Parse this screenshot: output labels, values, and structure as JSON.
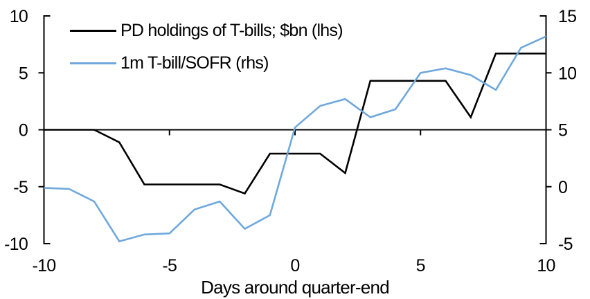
{
  "chart_data": {
    "type": "line",
    "title": "",
    "xlabel": "Days around quarter-end",
    "grid": false,
    "legend_position": "top-left",
    "x": [
      -10,
      -9,
      -8,
      -7,
      -6,
      -5,
      -4,
      -3,
      -2,
      -1,
      0,
      1,
      2,
      3,
      4,
      5,
      6,
      7,
      8,
      9,
      10
    ],
    "series": [
      {
        "name": "PD holdings of T-bills; $bn (lhs)",
        "axis": "left",
        "color": "#000000",
        "values": [
          0,
          0,
          0,
          -1.1,
          -4.8,
          -4.8,
          -4.8,
          -4.8,
          -5.6,
          -2.1,
          -2.1,
          -2.1,
          -3.8,
          4.3,
          4.3,
          4.3,
          4.3,
          1.1,
          6.7,
          6.7,
          6.7
        ]
      },
      {
        "name": "1m T-bill/SOFR (rhs)",
        "axis": "right",
        "color": "#6fa8dc",
        "values": [
          -0.1,
          -0.2,
          -1.3,
          -4.8,
          -4.2,
          -4.1,
          -2.0,
          -1.3,
          -3.7,
          -2.5,
          5.2,
          7.1,
          7.7,
          6.1,
          6.8,
          10.0,
          10.4,
          9.8,
          8.5,
          12.2,
          13.2
        ]
      }
    ],
    "left_axis": {
      "min": -10,
      "max": 10,
      "ticks": [
        10,
        5,
        0,
        -5,
        -10
      ]
    },
    "right_axis": {
      "min": -5,
      "max": 15,
      "ticks": [
        15,
        10,
        5,
        0,
        -5
      ]
    },
    "x_axis": {
      "min": -10,
      "max": 10,
      "ticks": [
        -10,
        -5,
        0,
        5,
        10
      ]
    }
  },
  "legend": {
    "items": [
      {
        "label": "PD holdings of T-bills; $bn (lhs)",
        "color": "#000000"
      },
      {
        "label": "1m T-bill/SOFR (rhs)",
        "color": "#6fa8dc"
      }
    ]
  }
}
